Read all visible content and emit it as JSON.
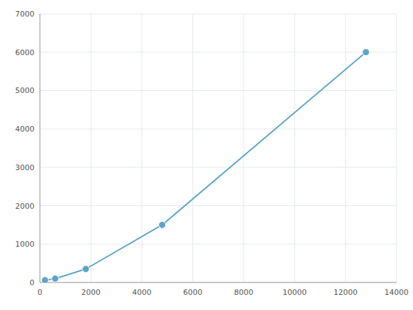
{
  "chart_data": {
    "type": "line",
    "x": [
      200,
      600,
      1800,
      4800,
      12800
    ],
    "values": [
      60,
      100,
      350,
      1500,
      6000
    ],
    "color": "#5ba3c9",
    "marker": "circle",
    "xlim": [
      0,
      14000
    ],
    "ylim": [
      0,
      7000
    ],
    "xticks": [
      0,
      2000,
      4000,
      6000,
      8000,
      10000,
      12000,
      14000
    ],
    "yticks": [
      0,
      1000,
      2000,
      3000,
      4000,
      5000,
      6000,
      7000
    ],
    "grid": true
  }
}
